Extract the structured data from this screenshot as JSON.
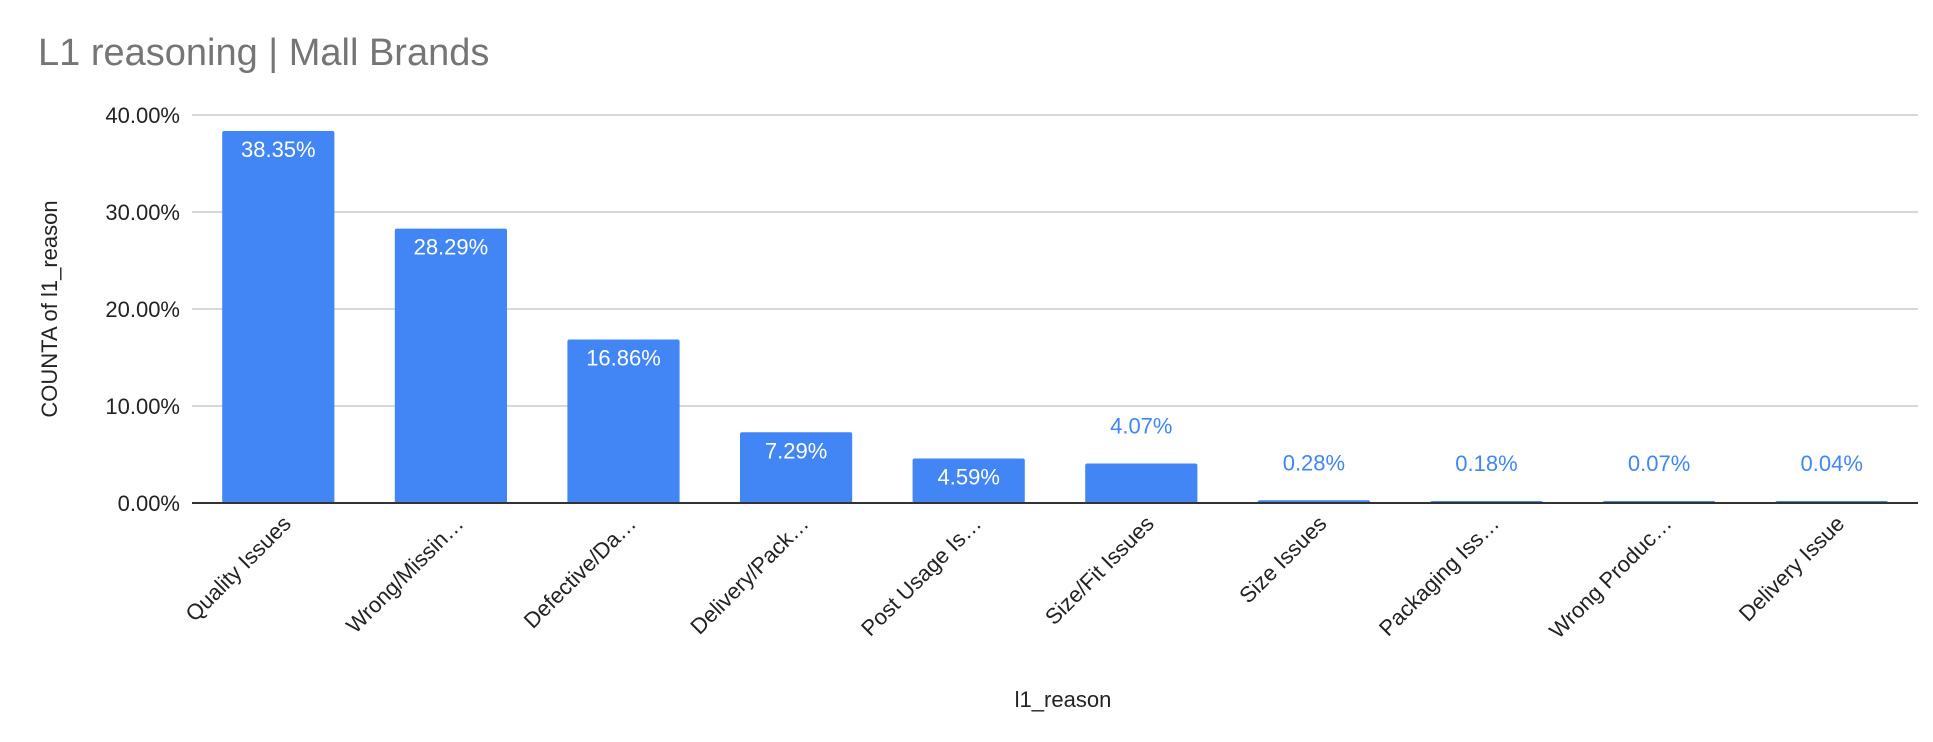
{
  "chart_data": {
    "type": "bar",
    "title": "L1 reasoning | Mall Brands",
    "xlabel": "l1_reason",
    "ylabel": "COUNTA of l1_reason",
    "categories": [
      "Quality Issues",
      "Wrong/Missin…",
      "Defective/Da…",
      "Delivery/Pack…",
      "Post Usage Is…",
      "Size/Fit Issues",
      "Size Issues",
      "Packaging Iss…",
      "Wrong Produc…",
      "Delivery Issue"
    ],
    "values": [
      38.35,
      28.29,
      16.86,
      7.29,
      4.59,
      4.07,
      0.28,
      0.18,
      0.07,
      0.04
    ],
    "value_labels": [
      "38.35%",
      "28.29%",
      "16.86%",
      "7.29%",
      "4.59%",
      "4.07%",
      "0.28%",
      "0.18%",
      "0.07%",
      "0.04%"
    ],
    "y_ticks": [
      "0.00%",
      "10.00%",
      "20.00%",
      "30.00%",
      "40.00%"
    ],
    "y_tick_values": [
      0,
      10,
      20,
      30,
      40
    ],
    "ylim": [
      0,
      40
    ],
    "grid": true,
    "legend": "none",
    "colors": {
      "bar": "#4285f4",
      "label_inside": "#ffffff",
      "label_outside": "#4285f4",
      "grid": "#cccccc",
      "axis": "#333333",
      "title": "#757575"
    }
  }
}
